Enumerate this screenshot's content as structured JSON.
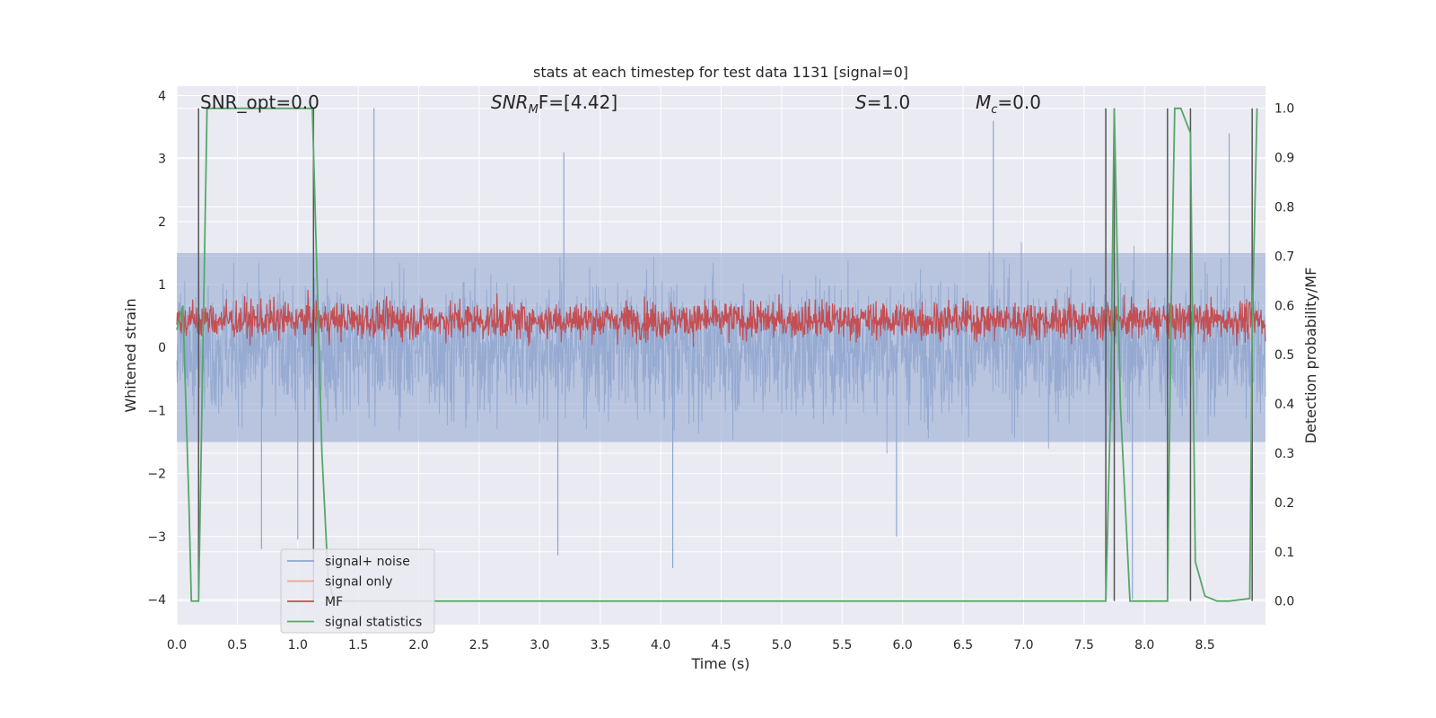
{
  "chart_data": {
    "type": "line",
    "title": "stats at each timestep for test data 1131 [signal=0]",
    "xlabel": "Time (s)",
    "ylabel_left": "Whitened strain",
    "ylabel_right": "Detection probability/MF",
    "xlim": [
      0.0,
      9.0
    ],
    "ylim_left": [
      -4.4,
      4.15
    ],
    "ylim_right": [
      -0.048,
      1.045
    ],
    "xticks": [
      "0.0",
      "0.5",
      "1.0",
      "1.5",
      "2.0",
      "2.5",
      "3.0",
      "3.5",
      "4.0",
      "4.5",
      "5.0",
      "5.5",
      "6.0",
      "6.5",
      "7.0",
      "7.5",
      "8.0",
      "8.5"
    ],
    "yticks_left": [
      "4",
      "3",
      "2",
      "1",
      "0",
      "−1",
      "−2",
      "−3",
      "−4"
    ],
    "yticks_right": [
      "1.0",
      "0.9",
      "0.8",
      "0.7",
      "0.6",
      "0.5",
      "0.4",
      "0.3",
      "0.2",
      "0.1",
      "0.0"
    ],
    "grid": true,
    "annotations": {
      "snr_opt": "SNR_opt=0.0",
      "snr_mf_main": "SNR",
      "snr_mf_sub": "M",
      "snr_mf_rest": "F=[4.42]",
      "s_main": "S",
      "s_rest": "=1.0",
      "mc_main": "M",
      "mc_sub": "c",
      "mc_rest": "=0.0"
    },
    "legend": {
      "position": "lower-left",
      "items": [
        {
          "label": "signal+ noise",
          "color": "#8fa6d0"
        },
        {
          "label": "signal only",
          "color": "#e8a88a"
        },
        {
          "label": "MF",
          "color": "#c44e52"
        },
        {
          "label": "signal statistics",
          "color": "#55a868"
        }
      ]
    },
    "series": [
      {
        "name": "signal+ noise",
        "color": "#8fa6d0",
        "axis": "left",
        "description": "dense noise trace, approx ±1.5 core with spikes to about ±3.8",
        "amplitude_core": 1.5,
        "peaks": [
          {
            "x": 1.63,
            "y": 3.8
          },
          {
            "x": 6.75,
            "y": 3.6
          },
          {
            "x": 8.7,
            "y": 3.4
          },
          {
            "x": 3.2,
            "y": 3.1
          },
          {
            "x": 4.1,
            "y": -3.5
          },
          {
            "x": 3.15,
            "y": -3.3
          },
          {
            "x": 7.9,
            "y": -4.0
          },
          {
            "x": 0.7,
            "y": -3.2
          },
          {
            "x": 1.0,
            "y": -3.05
          },
          {
            "x": 5.95,
            "y": -3.0
          }
        ]
      },
      {
        "name": "MF",
        "color": "#c44e52",
        "axis": "right",
        "description": "matched-filter output fluctuating between about 0.51 and 0.63",
        "range": [
          0.51,
          0.63
        ]
      },
      {
        "name": "signal statistics",
        "color": "#55a868",
        "axis": "right",
        "x": [
          0.0,
          0.05,
          0.1,
          0.12,
          0.18,
          0.25,
          0.3,
          1.12,
          1.2,
          1.25,
          1.3,
          7.68,
          7.72,
          7.75,
          7.8,
          7.88,
          7.95,
          8.19,
          8.22,
          8.25,
          8.3,
          8.38,
          8.42,
          8.5,
          8.6,
          8.7,
          8.87,
          8.89,
          8.93
        ],
        "y": [
          0.55,
          0.6,
          0.2,
          0.0,
          0.0,
          1.0,
          1.0,
          1.0,
          0.3,
          0.05,
          0.0,
          0.0,
          0.4,
          1.0,
          0.4,
          0.0,
          0.0,
          0.0,
          0.6,
          1.0,
          1.0,
          0.95,
          0.08,
          0.01,
          0.0,
          0.0,
          0.005,
          0.55,
          1.0
        ]
      }
    ],
    "vertical_markers": [
      {
        "x": 0.18,
        "ymax": 1.0
      },
      {
        "x": 1.13,
        "ymax": 1.0
      },
      {
        "x": 7.68,
        "ymax": 1.0
      },
      {
        "x": 7.75,
        "ymax": 1.0
      },
      {
        "x": 8.19,
        "ymax": 1.0
      },
      {
        "x": 8.38,
        "ymax": 1.0
      },
      {
        "x": 8.89,
        "ymax": 1.0
      }
    ]
  }
}
